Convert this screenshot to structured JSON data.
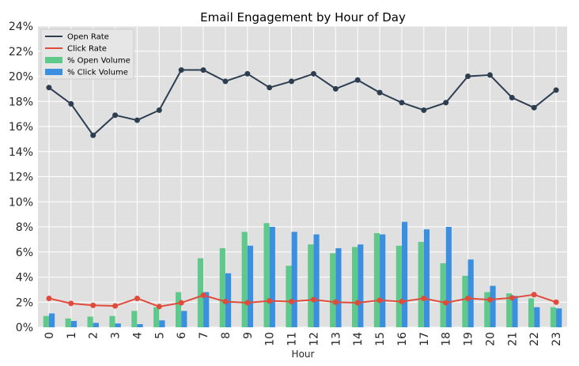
{
  "chart_data": {
    "type": "bar",
    "title": "Email Engagement by Hour of Day",
    "xlabel": "Hour",
    "ylabel": "",
    "categories": [
      "0",
      "1",
      "2",
      "3",
      "4",
      "5",
      "6",
      "7",
      "8",
      "9",
      "10",
      "11",
      "12",
      "13",
      "14",
      "15",
      "16",
      "17",
      "18",
      "19",
      "20",
      "21",
      "22",
      "23"
    ],
    "ylim": [
      0,
      24
    ],
    "yticks": [
      "0%",
      "2%",
      "4%",
      "6%",
      "8%",
      "10%",
      "12%",
      "14%",
      "16%",
      "18%",
      "20%",
      "22%",
      "24%"
    ],
    "grid": true,
    "legend_position": "top-left",
    "legend": [
      "Open Rate",
      "Click Rate",
      "% Open Volume",
      "% Click Volume"
    ],
    "series": [
      {
        "name": "Open Rate",
        "kind": "line",
        "color": "#2d3e50",
        "values": [
          19.1,
          17.8,
          15.3,
          16.9,
          16.5,
          17.3,
          20.5,
          20.5,
          19.6,
          20.2,
          19.1,
          19.6,
          20.2,
          19.0,
          19.7,
          18.7,
          17.9,
          17.3,
          17.9,
          20.0,
          20.1,
          18.3,
          17.5,
          18.9
        ]
      },
      {
        "name": "Click Rate",
        "kind": "line",
        "color": "#e04c3c",
        "values": [
          2.3,
          1.9,
          1.75,
          1.7,
          2.3,
          1.65,
          1.95,
          2.55,
          2.05,
          1.95,
          2.1,
          2.05,
          2.2,
          2.0,
          1.95,
          2.15,
          2.05,
          2.3,
          1.95,
          2.3,
          2.2,
          2.35,
          2.6,
          2.0
        ]
      },
      {
        "name": "% Open Volume",
        "kind": "bar",
        "color": "#5ec98b",
        "values": [
          0.9,
          0.7,
          0.85,
          0.9,
          1.3,
          1.6,
          2.8,
          5.5,
          6.3,
          7.6,
          8.3,
          4.9,
          6.6,
          5.9,
          6.4,
          7.5,
          6.5,
          6.8,
          5.1,
          4.1,
          2.8,
          2.7,
          2.3,
          1.6
        ]
      },
      {
        "name": "% Click Volume",
        "kind": "bar",
        "color": "#3a8fde",
        "values": [
          1.1,
          0.5,
          0.35,
          0.3,
          0.25,
          0.55,
          1.3,
          2.8,
          4.3,
          6.5,
          8.0,
          7.6,
          7.4,
          6.3,
          6.6,
          7.4,
          8.4,
          7.8,
          8.0,
          5.4,
          3.3,
          2.5,
          1.6,
          1.5
        ]
      }
    ]
  }
}
